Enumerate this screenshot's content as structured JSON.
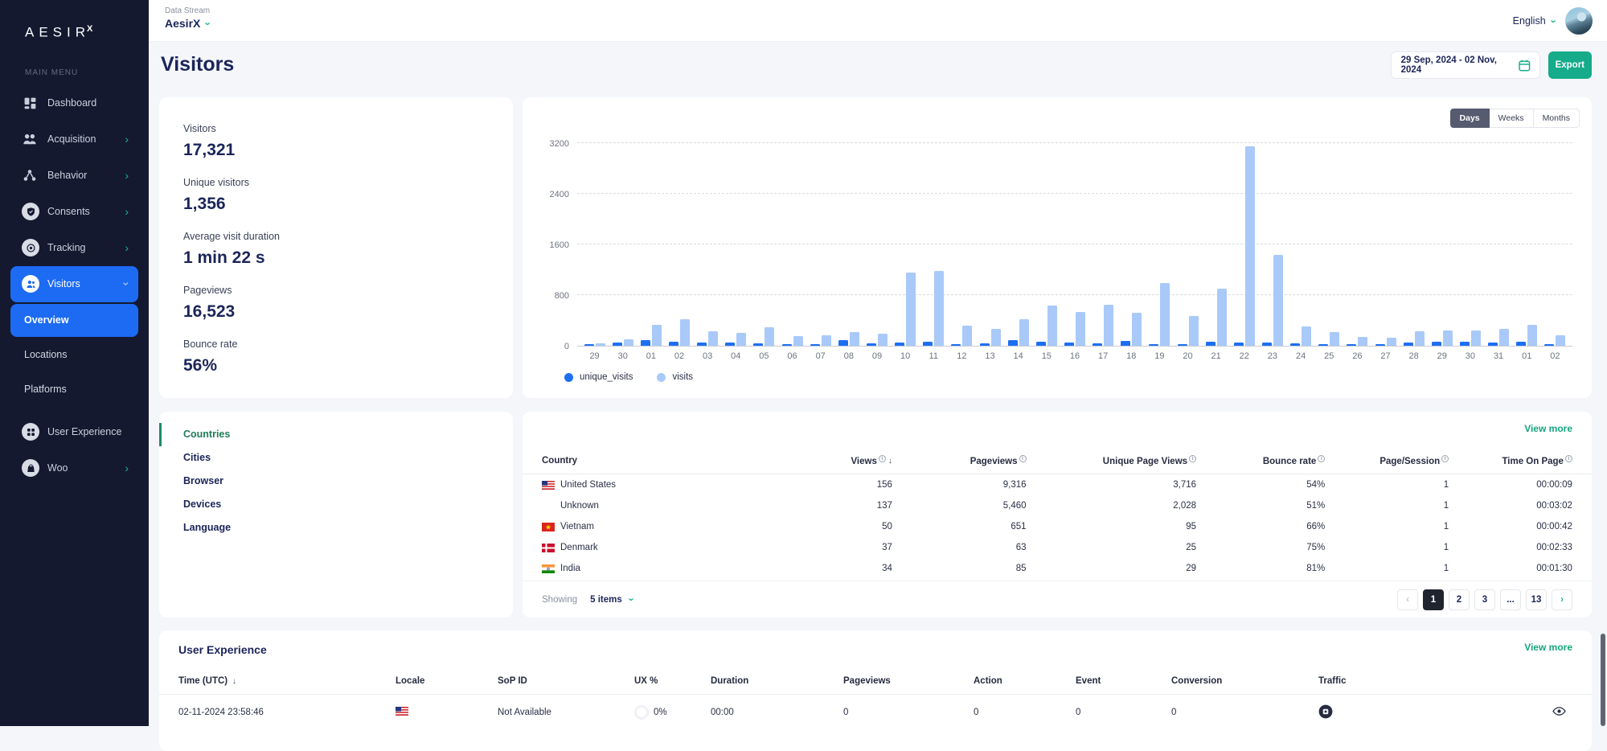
{
  "app": {
    "logo": "AESIR",
    "logo_sup": "X",
    "menu_label": "MAIN MENU"
  },
  "topbar": {
    "data_stream_label": "Data Stream",
    "data_stream_value": "AesirX",
    "language": "English"
  },
  "header": {
    "title": "Visitors",
    "date_range": "29 Sep, 2024 - 02 Nov, 2024",
    "export_label": "Export"
  },
  "sidebar": {
    "items": [
      {
        "label": "Dashboard",
        "icon": "dashboard-icon",
        "trailing": null,
        "active": false,
        "type": "item"
      },
      {
        "label": "Acquisition",
        "icon": "acquisition-icon",
        "trailing": "chevron-right",
        "active": false,
        "type": "item"
      },
      {
        "label": "Behavior",
        "icon": "behavior-icon",
        "trailing": "chevron-right",
        "active": false,
        "type": "item"
      },
      {
        "label": "Consents",
        "icon": "consents-icon",
        "trailing": "chevron-right",
        "active": false,
        "type": "item"
      },
      {
        "label": "Tracking",
        "icon": "tracking-icon",
        "trailing": "chevron-right",
        "active": false,
        "type": "item"
      },
      {
        "label": "Visitors",
        "icon": "visitors-icon",
        "trailing": "chevron-down",
        "active": true,
        "type": "item"
      },
      {
        "label": "Overview",
        "icon": null,
        "trailing": null,
        "active": true,
        "type": "sub"
      },
      {
        "label": "Locations",
        "icon": null,
        "trailing": null,
        "active": false,
        "type": "sub"
      },
      {
        "label": "Platforms",
        "icon": null,
        "trailing": null,
        "active": false,
        "type": "sub"
      },
      {
        "label": "User Experience",
        "icon": "user-experience-icon",
        "trailing": null,
        "active": false,
        "type": "item",
        "gap_before": true
      },
      {
        "label": "Woo",
        "icon": "woo-icon",
        "trailing": "chevron-right",
        "active": false,
        "type": "item"
      }
    ]
  },
  "stats": [
    {
      "label": "Visitors",
      "value": "17,321"
    },
    {
      "label": "Unique visitors",
      "value": "1,356"
    },
    {
      "label": "Average visit duration",
      "value": "1 min 22 s"
    },
    {
      "label": "Pageviews",
      "value": "16,523"
    },
    {
      "label": "Bounce rate",
      "value": "56%"
    }
  ],
  "chart": {
    "toggles": [
      "Days",
      "Weeks",
      "Months"
    ],
    "active_toggle": "Days"
  },
  "chart_data": {
    "type": "bar",
    "title": "",
    "xlabel": "",
    "ylabel": "",
    "categories": [
      "29",
      "30",
      "01",
      "02",
      "03",
      "04",
      "05",
      "06",
      "07",
      "08",
      "09",
      "10",
      "11",
      "12",
      "13",
      "14",
      "15",
      "16",
      "17",
      "18",
      "19",
      "20",
      "21",
      "22",
      "23",
      "24",
      "25",
      "26",
      "27",
      "28",
      "29",
      "30",
      "31",
      "01",
      "02"
    ],
    "series": [
      {
        "name": "unique_visits",
        "color": "#1d6ff2",
        "values": [
          20,
          54,
          83,
          67,
          54,
          46,
          38,
          25,
          21,
          83,
          33,
          50,
          63,
          20,
          33,
          85,
          63,
          50,
          42,
          76,
          30,
          30,
          63,
          50,
          55,
          42,
          30,
          20,
          12,
          50,
          58,
          62,
          50,
          62,
          17
        ]
      },
      {
        "name": "visits",
        "color": "#a9c9f8",
        "values": [
          42,
          104,
          325,
          417,
          233,
          200,
          296,
          158,
          167,
          221,
          190,
          1150,
          1180,
          320,
          265,
          425,
          635,
          530,
          650,
          520,
          995,
          474,
          897,
          3150,
          1435,
          310,
          215,
          135,
          130,
          225,
          240,
          240,
          270,
          325,
          165
        ]
      }
    ],
    "ylim": [
      0,
      3200
    ],
    "yticks": [
      0,
      800,
      1600,
      2400,
      3200
    ],
    "grid": true,
    "legend_position": "bottom-left"
  },
  "dimensions": {
    "tabs": [
      {
        "label": "Countries",
        "active": true
      },
      {
        "label": "Cities",
        "active": false
      },
      {
        "label": "Browser",
        "active": false
      },
      {
        "label": "Devices",
        "active": false
      },
      {
        "label": "Language",
        "active": false
      }
    ]
  },
  "countries": {
    "view_more": "View more",
    "columns": [
      {
        "label": "Country",
        "info": false,
        "sorted": false
      },
      {
        "label": "Views",
        "info": true,
        "sorted": true
      },
      {
        "label": "Pageviews",
        "info": true,
        "sorted": false
      },
      {
        "label": "Unique Page Views",
        "info": true,
        "sorted": false
      },
      {
        "label": "Bounce rate",
        "info": true,
        "sorted": false
      },
      {
        "label": "Page/Session",
        "info": true,
        "sorted": false
      },
      {
        "label": "Time On Page",
        "info": true,
        "sorted": false
      }
    ],
    "rows": [
      {
        "flag": "us",
        "country": "United States",
        "views": "156",
        "pageviews": "9,316",
        "unique_page_views": "3,716",
        "bounce_rate": "54%",
        "page_session": "1",
        "time_on_page": "00:00:09"
      },
      {
        "flag": null,
        "country": "Unknown",
        "views": "137",
        "pageviews": "5,460",
        "unique_page_views": "2,028",
        "bounce_rate": "51%",
        "page_session": "1",
        "time_on_page": "00:03:02"
      },
      {
        "flag": "vn",
        "country": "Vietnam",
        "views": "50",
        "pageviews": "651",
        "unique_page_views": "95",
        "bounce_rate": "66%",
        "page_session": "1",
        "time_on_page": "00:00:42"
      },
      {
        "flag": "dk",
        "country": "Denmark",
        "views": "37",
        "pageviews": "63",
        "unique_page_views": "25",
        "bounce_rate": "75%",
        "page_session": "1",
        "time_on_page": "00:02:33"
      },
      {
        "flag": "in",
        "country": "India",
        "views": "34",
        "pageviews": "85",
        "unique_page_views": "29",
        "bounce_rate": "81%",
        "page_session": "1",
        "time_on_page": "00:01:30"
      }
    ],
    "pagination": {
      "showing_label": "Showing",
      "items_label": "5 items",
      "pages": [
        "1",
        "2",
        "3",
        "...",
        "13"
      ],
      "active_page": "1"
    }
  },
  "user_experience": {
    "title": "User Experience",
    "view_more": "View more",
    "columns": [
      "Time (UTC)",
      "Locale",
      "SoP ID",
      "UX %",
      "Duration",
      "Pageviews",
      "Action",
      "Event",
      "Conversion",
      "Traffic"
    ],
    "sorted_column": "Time (UTC)",
    "rows": [
      {
        "time": "02-11-2024 23:58:46",
        "locale": "us",
        "sop_id": "Not Available",
        "ux_percent": "0%",
        "duration": "00:00",
        "pageviews": "0",
        "action": "0",
        "event": "0",
        "conversion": "0"
      }
    ]
  },
  "colors": {
    "sidebar_bg": "#141930",
    "accent_blue": "#1d6bf3",
    "accent_teal": "#15ab8b",
    "active_green": "#1c7d57",
    "unique_visits": "#1d6ff2",
    "visits": "#a9c9f8"
  }
}
